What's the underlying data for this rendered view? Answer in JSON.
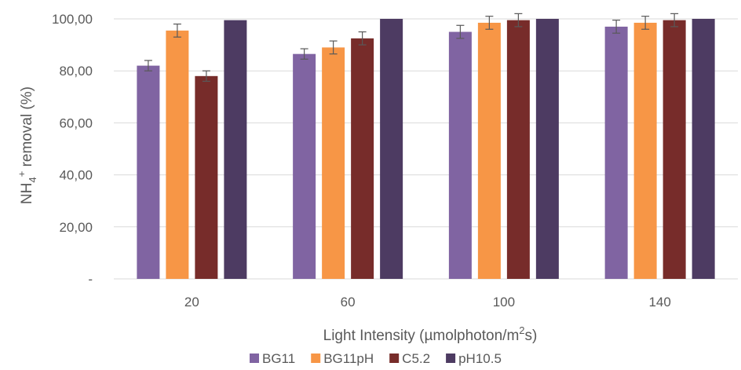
{
  "chart_data": {
    "type": "bar",
    "title": "",
    "xlabel": {
      "main": "Light Intensity (µmolphoton/m",
      "sup": "2",
      "tail": "s)"
    },
    "ylabel": {
      "pre": "NH",
      "sub": "4",
      "sup": "+",
      "post": " removal  (%)"
    },
    "categories": [
      "20",
      "60",
      "100",
      "140"
    ],
    "ylim": [
      0,
      100
    ],
    "y_ticks": [
      {
        "value": 0,
        "label": "-"
      },
      {
        "value": 20,
        "label": "20,00"
      },
      {
        "value": 40,
        "label": "40,00"
      },
      {
        "value": 60,
        "label": "60,00"
      },
      {
        "value": 80,
        "label": "80,00"
      },
      {
        "value": 100,
        "label": "100,00"
      }
    ],
    "grid": true,
    "legend_position": "bottom",
    "series": [
      {
        "name": "BG11",
        "color": "#8064a2",
        "values": [
          82,
          86.5,
          95,
          97
        ],
        "errors": [
          2,
          2,
          2.5,
          2.5
        ]
      },
      {
        "name": "BG11pH",
        "color": "#f79646",
        "values": [
          95.5,
          89,
          98.5,
          98.5
        ],
        "errors": [
          2.5,
          2.5,
          2.5,
          2.5
        ]
      },
      {
        "name": "C5.2",
        "color": "#772c2a",
        "values": [
          78,
          92.5,
          99.5,
          99.5
        ],
        "errors": [
          2,
          2.5,
          2.5,
          2.5
        ]
      },
      {
        "name": "pH10.5",
        "color": "#4d3b62",
        "values": [
          99.5,
          100,
          100,
          100
        ],
        "errors": [
          0,
          0,
          0,
          0
        ]
      }
    ]
  }
}
